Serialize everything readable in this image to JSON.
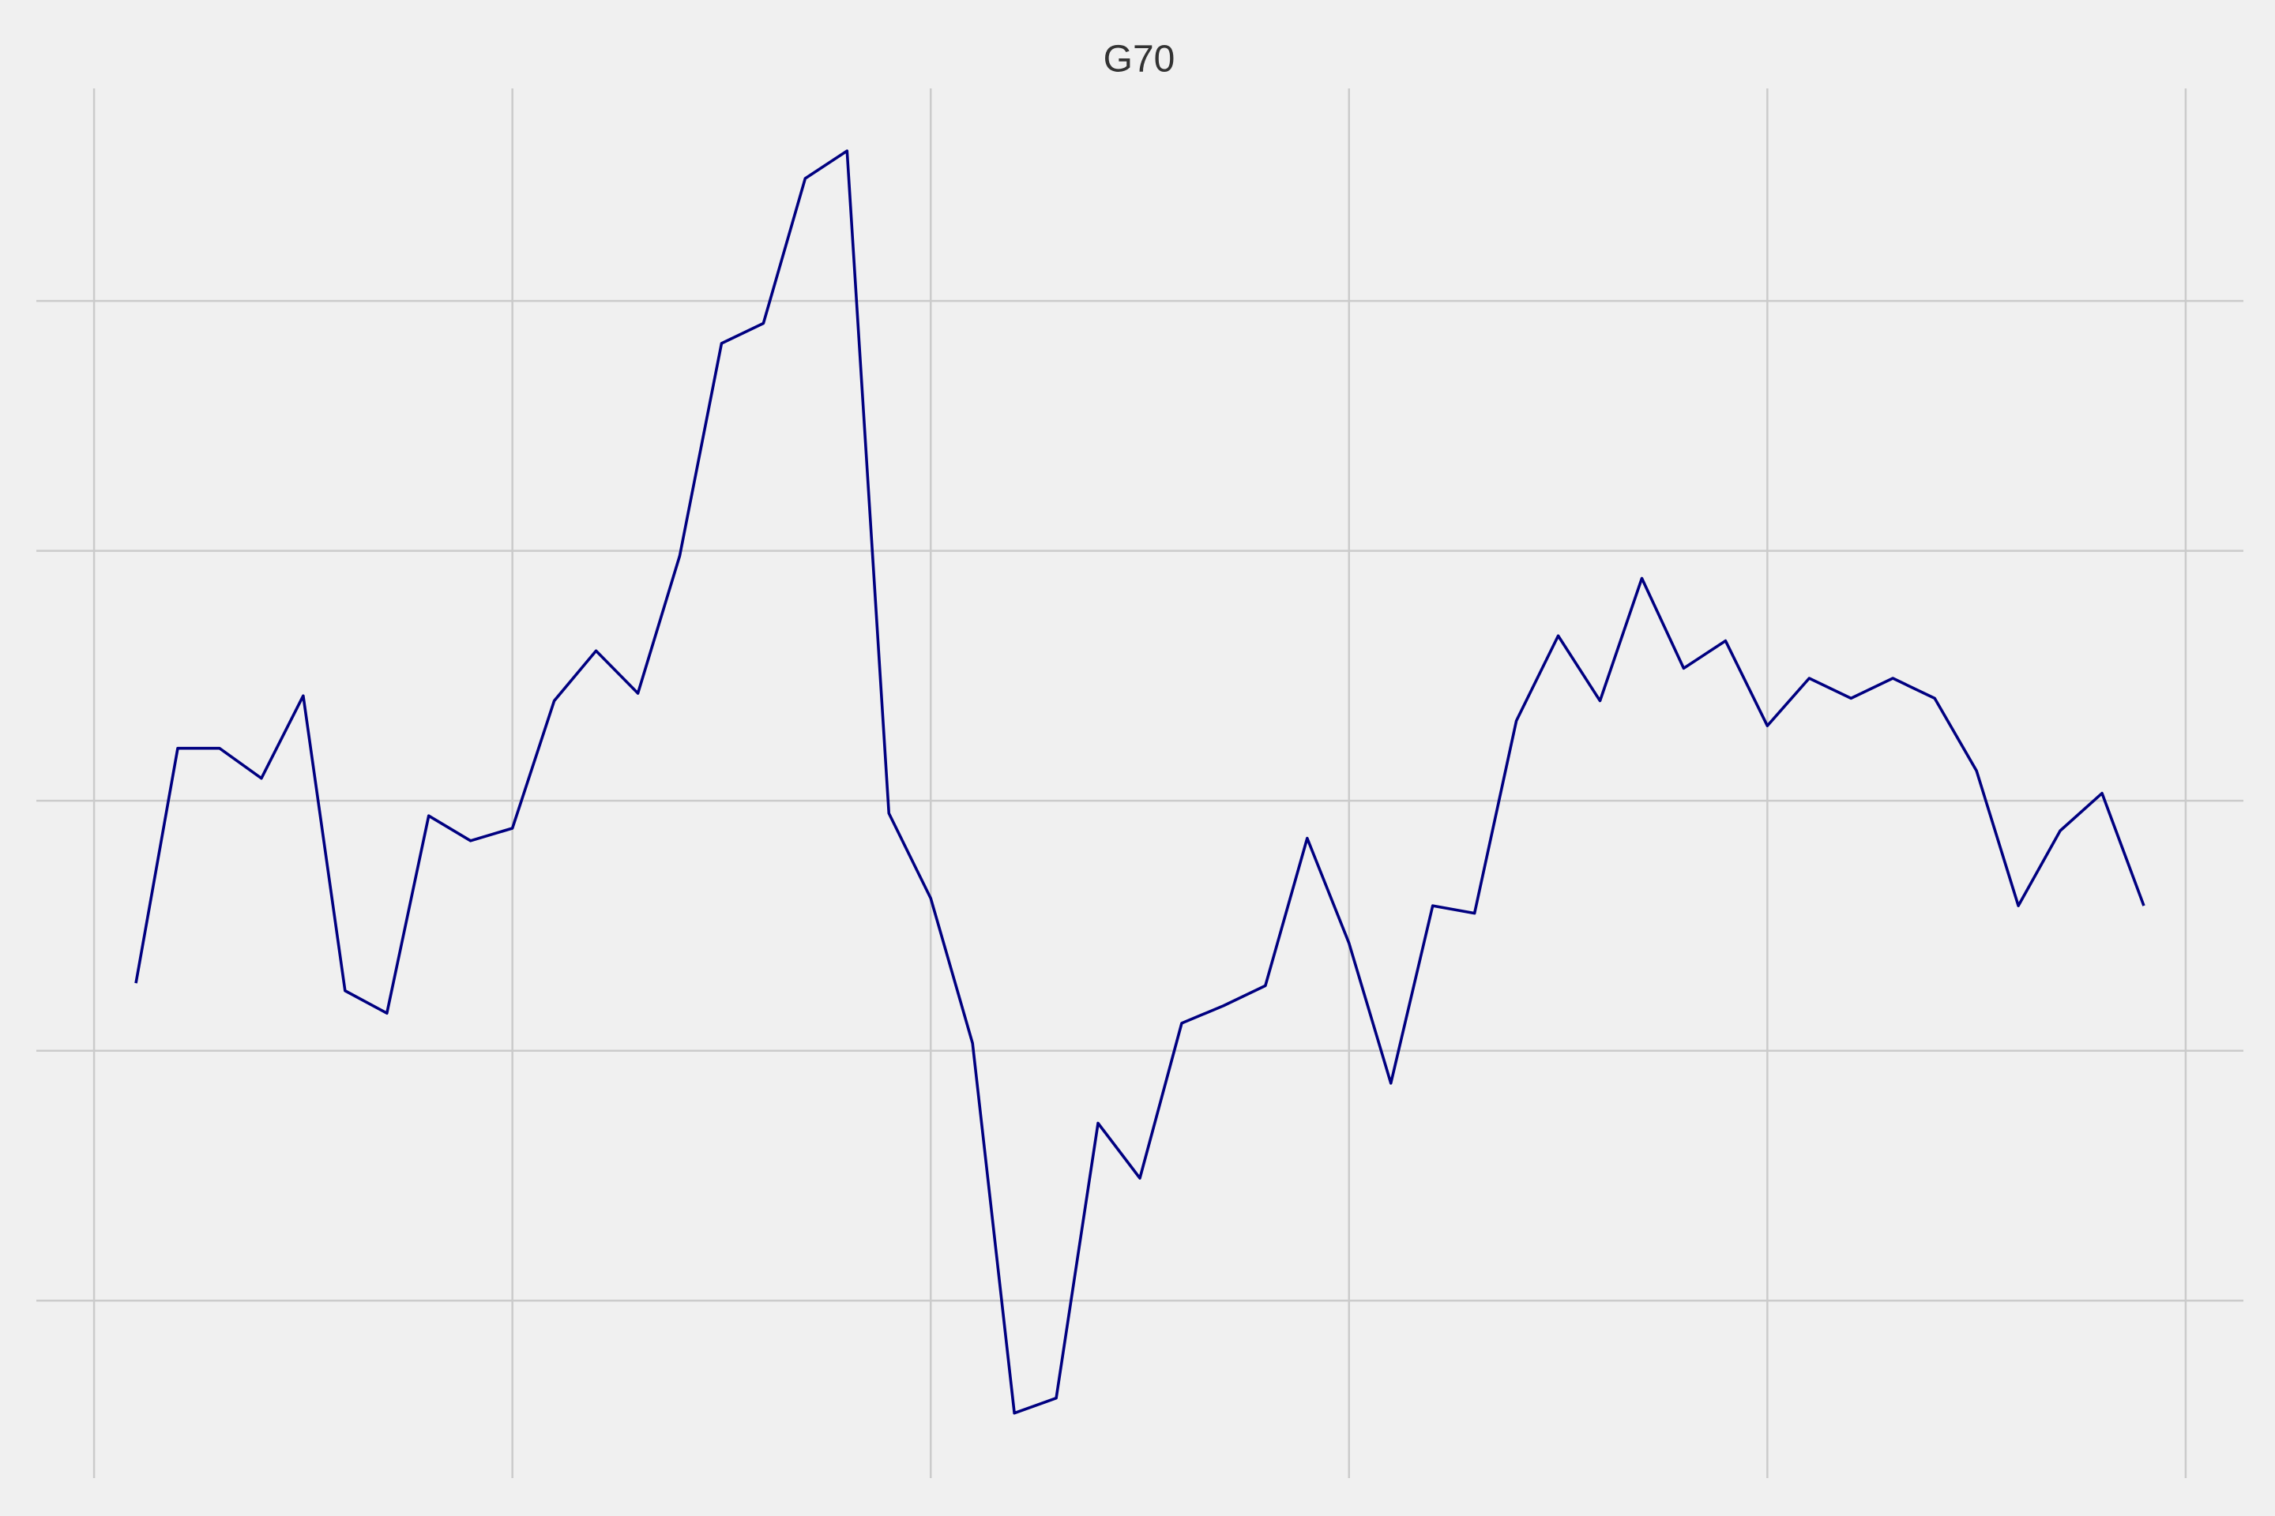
{
  "chart_data": {
    "type": "line",
    "title": "G70",
    "x": [
      1,
      2,
      3,
      4,
      5,
      6,
      7,
      8,
      9,
      10,
      11,
      12,
      13,
      14,
      15,
      16,
      17,
      18,
      19,
      20,
      21,
      22,
      23,
      24,
      25,
      26,
      27,
      28,
      29,
      30,
      31,
      32,
      33,
      34,
      35,
      36,
      37,
      38,
      39,
      40,
      41,
      42,
      43,
      44,
      45,
      46,
      47,
      48,
      49
    ],
    "series": [
      {
        "color": "#000080",
        "values": [
          1.27,
          2.21,
          2.21,
          2.09,
          2.42,
          1.24,
          1.15,
          1.94,
          1.84,
          1.89,
          2.4,
          2.6,
          2.43,
          2.98,
          3.83,
          3.91,
          4.49,
          4.6,
          1.95,
          1.61,
          1.03,
          -0.45,
          -0.39,
          0.71,
          0.49,
          1.11,
          1.18,
          1.26,
          1.85,
          1.43,
          0.87,
          1.58,
          1.55,
          2.32,
          2.66,
          2.4,
          2.89,
          2.53,
          2.64,
          2.3,
          2.49,
          2.41,
          2.49,
          2.41,
          2.12,
          1.58,
          1.88,
          2.03,
          1.58
        ]
      }
    ],
    "xlim": [
      -1.38,
      51.38
    ],
    "xticks": [
      0,
      10,
      20,
      30,
      40,
      50
    ],
    "ylim": [
      -0.71,
      4.85
    ],
    "yticks": [
      0,
      1,
      2,
      3,
      4
    ],
    "grid": true
  }
}
